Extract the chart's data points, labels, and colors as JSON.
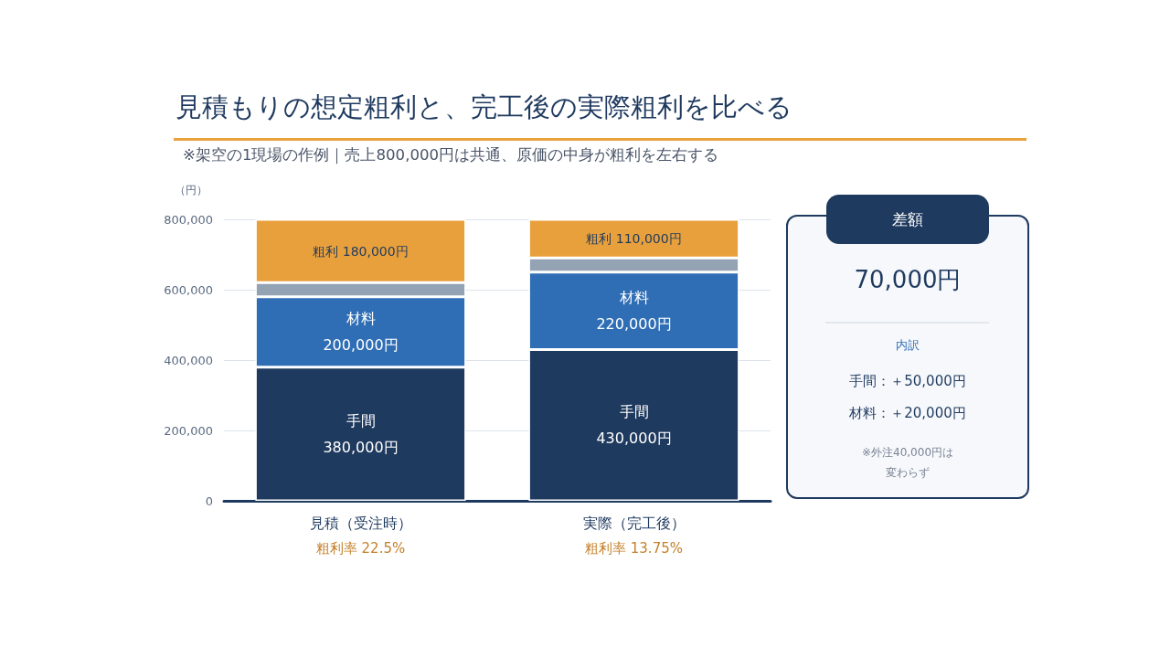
{
  "chart_data": [
    {
      "type": "bar",
      "title": "見積もりの想定粗利と、完工後の実際粗利を比べる",
      "subtitle": "※架空の1現場の作例｜売上800,000円は共通、原価の中身が粗利を左右する",
      "ylabel": "（円）",
      "categories": [
        "見積（受注時）",
        "実際（完工後）"
      ],
      "stacked": true,
      "series": [
        {
          "name": "手間",
          "color": "#1f3a5f",
          "values": [
            380000,
            430000
          ],
          "value_labels": [
            "380,000円",
            "430,000円"
          ]
        },
        {
          "name": "材料",
          "color": "#2f6eb5",
          "values": [
            200000,
            220000
          ],
          "value_labels": [
            "200,000円",
            "220,000円"
          ]
        },
        {
          "color": "#94a3b4",
          "values": [
            40000,
            40000
          ]
        },
        {
          "name": "粗利",
          "color": "#e8a03c",
          "values": [
            180000,
            110000
          ],
          "value_labels": [
            "180,000円",
            "110,000円"
          ]
        }
      ],
      "ylim": [
        0,
        800000
      ],
      "yticks": [
        0,
        {
          "value": 200000,
          "label": "200,000"
        },
        {
          "value": 400000,
          "label": "400,000"
        },
        {
          "value": 600000,
          "label": "600,000"
        },
        {
          "value": 800000,
          "label": "800,000"
        }
      ],
      "grid": "y",
      "annotations": [
        "粗利率 22.5%",
        "粗利率 13.75%"
      ]
    },
    {
      "type": "other",
      "title": "差額",
      "annotations": [
        "70,000円",
        "内訳",
        "手間：＋50,000円",
        "材料：＋20,000円",
        "※外注40,000円は変わらず"
      ]
    }
  ]
}
